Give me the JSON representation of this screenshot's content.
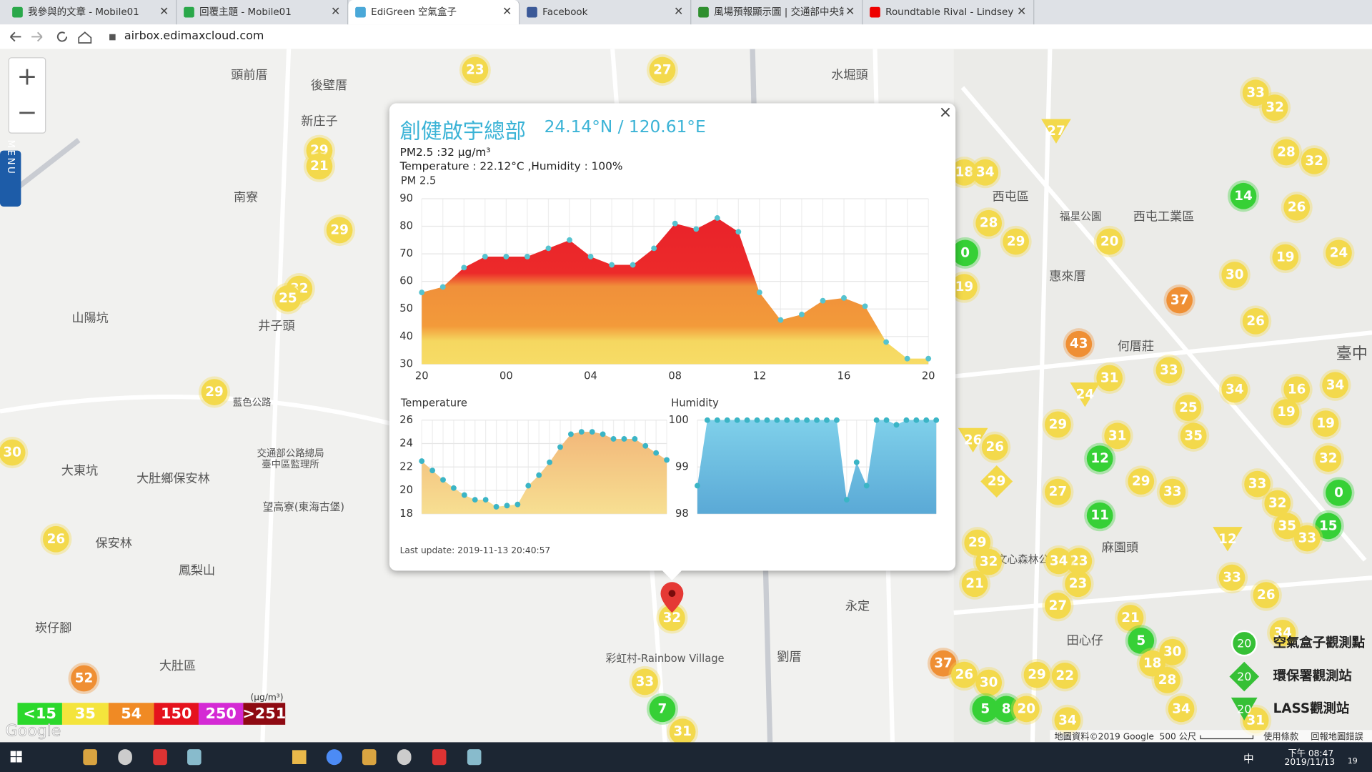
{
  "browser": {
    "tabs": [
      "我參與的文章 - Mobile01",
      "回覆主題 - Mobile01",
      "EdiGreen 空氣盒子",
      "Facebook",
      "風場預報顯示圖 | 交通部中央氣",
      "Roundtable Rival - Lindsey"
    ],
    "url": "airbox.edimaxcloud.com"
  },
  "map": {
    "zoom_in": "+",
    "zoom_out": "−",
    "menu": "MENU",
    "labels": [
      "頭前厝",
      "後壁厝",
      "新庄子",
      "南寮",
      "山陽坑",
      "井子頭",
      "大東坑",
      "大肚鄉保安林",
      "保安林",
      "鳳梨山",
      "崁仔腳",
      "大肚區",
      "水堀頭",
      "西屯區",
      "惠來厝",
      "何厝莊",
      "麻園頭",
      "田心仔",
      "永定",
      "劉厝",
      "彩虹村-Rainbow Village",
      "西屯工業區",
      "福星公園",
      "臺中",
      "望高寮(東海古堡)",
      "交通部公路總局",
      "臺中區監理所",
      "文心森林公園",
      "藍色公路"
    ],
    "markers": [
      23,
      27,
      29,
      21,
      29,
      32,
      25,
      29,
      30,
      26,
      52,
      33,
      7,
      31,
      32,
      18,
      34,
      28,
      29,
      0,
      19,
      27,
      20,
      33,
      32,
      28,
      32,
      14,
      26,
      24,
      19,
      30,
      37,
      26,
      43,
      31,
      33,
      24,
      34,
      16,
      34,
      25,
      29,
      31,
      35,
      19,
      19,
      26,
      26,
      12,
      32,
      29,
      29,
      33,
      33,
      0,
      27,
      32,
      11,
      35,
      15,
      33,
      12,
      29,
      32,
      23,
      34,
      33,
      23,
      21,
      26,
      27,
      21,
      5,
      30,
      34,
      37,
      26,
      18,
      28,
      30,
      29,
      22,
      5,
      8,
      20,
      34,
      34,
      31
    ],
    "legend": {
      "unit": "(μg/m³)",
      "levels": [
        "<15",
        35,
        54,
        150,
        250,
        ">251"
      ]
    },
    "stations": [
      "空氣盒子觀測點",
      "環保署觀測站",
      "LASS觀測站"
    ],
    "station_icon": 20,
    "footer": {
      "attribution": "地圖資料©2019 Google",
      "scale": "500 公尺",
      "terms": "使用條款",
      "report": "回報地圖錯誤"
    },
    "logo": "Google"
  },
  "popup": {
    "title": "創健啟宇總部",
    "coords": "24.14°N / 120.61°E",
    "pm25": "PM2.5 :32 μg/m³",
    "env": "Temperature : 22.12°C ,Humidity : 100%",
    "last_update": "Last update: 2019-11-13 20:40:57",
    "close": "×"
  },
  "chart_data": [
    {
      "type": "area",
      "title": "PM 2.5",
      "categories": [
        "20",
        null,
        null,
        null,
        "00",
        null,
        null,
        null,
        "04",
        null,
        null,
        null,
        "08",
        null,
        null,
        null,
        "12",
        null,
        null,
        null,
        "16",
        null,
        null,
        null,
        "20"
      ],
      "values": [
        56,
        58,
        65,
        69,
        69,
        69,
        72,
        75,
        69,
        66,
        66,
        72,
        81,
        79,
        83,
        78,
        56,
        46,
        48,
        53,
        54,
        51,
        38,
        32,
        32
      ],
      "ylim": [
        30,
        90
      ],
      "yticks": [
        30,
        40,
        50,
        60,
        70,
        80,
        90
      ],
      "grid": true
    },
    {
      "type": "area",
      "title": "Temperature",
      "values": [
        22.5,
        21.7,
        20.9,
        20.2,
        19.6,
        19.2,
        19.2,
        18.6,
        18.7,
        18.8,
        20.4,
        21.3,
        22.4,
        23.7,
        24.8,
        25.0,
        25.0,
        24.8,
        24.4,
        24.4,
        24.4,
        23.8,
        23.2,
        22.6
      ],
      "ylim": [
        18,
        26
      ],
      "yticks": [
        18,
        20,
        22,
        24,
        26
      ],
      "grid": true
    },
    {
      "type": "area",
      "title": "Humidity",
      "values": [
        98.6,
        100,
        100,
        100,
        100,
        100,
        100,
        100,
        100,
        100,
        100,
        100,
        100,
        100,
        100,
        98.3,
        99.1,
        98.6,
        100,
        100,
        99.9,
        100,
        100,
        100,
        100
      ],
      "ylim": [
        98,
        100
      ],
      "yticks": [
        98,
        99,
        100
      ],
      "grid": true
    }
  ],
  "taskbar": {
    "ime": "中",
    "time": "下午 08:47",
    "date": "2019/11/13",
    "notifications": 19
  }
}
